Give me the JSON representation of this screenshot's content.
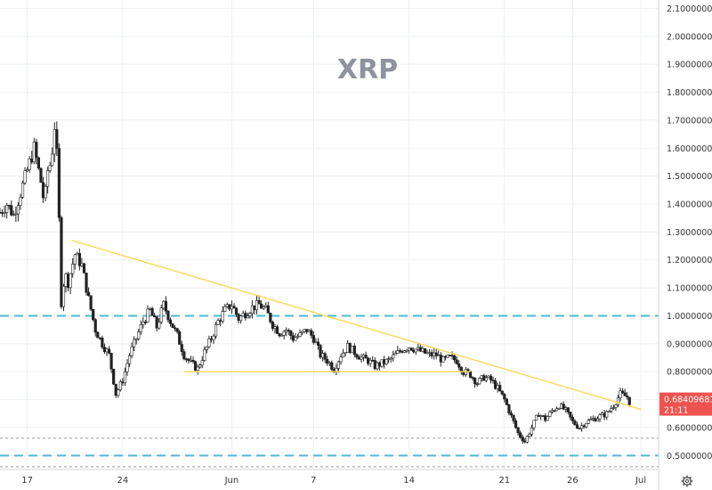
{
  "chart_data": {
    "type": "candlestick",
    "title": "XRP",
    "ylim": [
      0.45,
      2.13
    ],
    "y_ticks": [
      0.5,
      0.6,
      0.7,
      0.8,
      0.9,
      1.0,
      1.1,
      1.2,
      1.3,
      1.4,
      1.5,
      1.6,
      1.7,
      1.8,
      1.9,
      2.0,
      2.1
    ],
    "y_tick_labels": [
      "0.50000000",
      "0.60000000",
      "0.70000000",
      "0.80000000",
      "0.90000000",
      "1.00000000",
      "1.10000000",
      "1.20000000",
      "1.30000000",
      "1.40000000",
      "1.50000000",
      "1.60000000",
      "1.70000000",
      "1.80000000",
      "1.90000000",
      "2.00000000",
      "2.10000000"
    ],
    "x_range": [
      "2021-05-15",
      "2021-07-01"
    ],
    "x_ticks": [
      {
        "date": "2021-05-17",
        "label": "17"
      },
      {
        "date": "2021-05-24",
        "label": "24"
      },
      {
        "date": "2021-06-01",
        "label": "Jun"
      },
      {
        "date": "2021-06-07",
        "label": "7"
      },
      {
        "date": "2021-06-14",
        "label": "14"
      },
      {
        "date": "2021-06-21",
        "label": "21"
      },
      {
        "date": "2021-06-26",
        "label": "26"
      },
      {
        "date": "2021-07-01",
        "label": "Jul"
      }
    ],
    "grid": true,
    "current_price": 0.68409681,
    "current_price_label": "0.68409681",
    "countdown_label": "21:11",
    "series": [
      {
        "kind": "ohlc-path",
        "color_up": "#26a69a",
        "color_down": "#ef5350",
        "points": [
          [
            "2021-05-15 00:00",
            1.37
          ],
          [
            "2021-05-15 12:00",
            1.4
          ],
          [
            "2021-05-16 00:00",
            1.36
          ],
          [
            "2021-05-16 12:00",
            1.44
          ],
          [
            "2021-05-17 00:00",
            1.52
          ],
          [
            "2021-05-17 12:00",
            1.6
          ],
          [
            "2021-05-18 00:00",
            1.48
          ],
          [
            "2021-05-18 06:00",
            1.4
          ],
          [
            "2021-05-18 12:00",
            1.52
          ],
          [
            "2021-05-18 18:00",
            1.55
          ],
          [
            "2021-05-19 00:00",
            1.68
          ],
          [
            "2021-05-19 06:00",
            1.52
          ],
          [
            "2021-05-19 09:00",
            1.25
          ],
          [
            "2021-05-19 12:00",
            1.05
          ],
          [
            "2021-05-19 18:00",
            1.15
          ],
          [
            "2021-05-20 00:00",
            1.12
          ],
          [
            "2021-05-20 12:00",
            1.22
          ],
          [
            "2021-05-21 00:00",
            1.18
          ],
          [
            "2021-05-21 12:00",
            1.06
          ],
          [
            "2021-05-22 00:00",
            0.95
          ],
          [
            "2021-05-22 12:00",
            0.9
          ],
          [
            "2021-05-23 00:00",
            0.86
          ],
          [
            "2021-05-23 12:00",
            0.72
          ],
          [
            "2021-05-24 00:00",
            0.77
          ],
          [
            "2021-05-24 12:00",
            0.86
          ],
          [
            "2021-05-25 00:00",
            0.92
          ],
          [
            "2021-05-25 12:00",
            0.98
          ],
          [
            "2021-05-26 00:00",
            1.02
          ],
          [
            "2021-05-26 12:00",
            0.96
          ],
          [
            "2021-05-27 00:00",
            1.04
          ],
          [
            "2021-05-27 12:00",
            0.98
          ],
          [
            "2021-05-28 00:00",
            0.93
          ],
          [
            "2021-05-28 12:00",
            0.86
          ],
          [
            "2021-05-29 00:00",
            0.83
          ],
          [
            "2021-05-29 12:00",
            0.81
          ],
          [
            "2021-05-30 00:00",
            0.87
          ],
          [
            "2021-05-30 12:00",
            0.92
          ],
          [
            "2021-05-31 00:00",
            0.98
          ],
          [
            "2021-05-31 12:00",
            1.02
          ],
          [
            "2021-06-01 00:00",
            1.04
          ],
          [
            "2021-06-01 12:00",
            0.99
          ],
          [
            "2021-06-02 00:00",
            1.01
          ],
          [
            "2021-06-02 12:00",
            1.03
          ],
          [
            "2021-06-03 00:00",
            1.04
          ],
          [
            "2021-06-03 12:00",
            1.02
          ],
          [
            "2021-06-04 00:00",
            0.97
          ],
          [
            "2021-06-04 12:00",
            0.94
          ],
          [
            "2021-06-05 00:00",
            0.95
          ],
          [
            "2021-06-05 12:00",
            0.92
          ],
          [
            "2021-06-06 00:00",
            0.93
          ],
          [
            "2021-06-06 12:00",
            0.95
          ],
          [
            "2021-06-07 00:00",
            0.92
          ],
          [
            "2021-06-07 12:00",
            0.86
          ],
          [
            "2021-06-08 00:00",
            0.84
          ],
          [
            "2021-06-08 12:00",
            0.81
          ],
          [
            "2021-06-09 00:00",
            0.86
          ],
          [
            "2021-06-09 12:00",
            0.89
          ],
          [
            "2021-06-10 00:00",
            0.87
          ],
          [
            "2021-06-10 12:00",
            0.85
          ],
          [
            "2021-06-11 00:00",
            0.84
          ],
          [
            "2021-06-11 12:00",
            0.82
          ],
          [
            "2021-06-12 00:00",
            0.83
          ],
          [
            "2021-06-12 12:00",
            0.84
          ],
          [
            "2021-06-13 00:00",
            0.86
          ],
          [
            "2021-06-13 12:00",
            0.88
          ],
          [
            "2021-06-14 00:00",
            0.89
          ],
          [
            "2021-06-14 12:00",
            0.88
          ],
          [
            "2021-06-15 00:00",
            0.87
          ],
          [
            "2021-06-15 12:00",
            0.86
          ],
          [
            "2021-06-16 00:00",
            0.86
          ],
          [
            "2021-06-16 12:00",
            0.84
          ],
          [
            "2021-06-17 00:00",
            0.85
          ],
          [
            "2021-06-17 12:00",
            0.84
          ],
          [
            "2021-06-18 00:00",
            0.8
          ],
          [
            "2021-06-18 12:00",
            0.79
          ],
          [
            "2021-06-19 00:00",
            0.76
          ],
          [
            "2021-06-19 12:00",
            0.78
          ],
          [
            "2021-06-20 00:00",
            0.77
          ],
          [
            "2021-06-20 12:00",
            0.74
          ],
          [
            "2021-06-21 00:00",
            0.7
          ],
          [
            "2021-06-21 12:00",
            0.64
          ],
          [
            "2021-06-22 00:00",
            0.58
          ],
          [
            "2021-06-22 12:00",
            0.55
          ],
          [
            "2021-06-23 00:00",
            0.6
          ],
          [
            "2021-06-23 12:00",
            0.65
          ],
          [
            "2021-06-24 00:00",
            0.63
          ],
          [
            "2021-06-24 12:00",
            0.66
          ],
          [
            "2021-06-25 00:00",
            0.68
          ],
          [
            "2021-06-25 12:00",
            0.66
          ],
          [
            "2021-06-26 00:00",
            0.62
          ],
          [
            "2021-06-26 12:00",
            0.6
          ],
          [
            "2021-06-27 00:00",
            0.62
          ],
          [
            "2021-06-27 12:00",
            0.63
          ],
          [
            "2021-06-28 00:00",
            0.64
          ],
          [
            "2021-06-28 12:00",
            0.65
          ],
          [
            "2021-06-29 00:00",
            0.68
          ],
          [
            "2021-06-29 12:00",
            0.72
          ],
          [
            "2021-06-30 00:00",
            0.71
          ],
          [
            "2021-06-30 06:00",
            0.684
          ]
        ]
      }
    ],
    "annotations": {
      "trendlines": [
        {
          "color": "#ffd54f",
          "from": [
            "2021-05-20 06:00",
            1.27
          ],
          "to": [
            "2021-07-01 00:00",
            0.665
          ]
        },
        {
          "color": "#ffd54f",
          "from": [
            "2021-05-28 12:00",
            0.8
          ],
          "to": [
            "2021-06-18 12:00",
            0.8
          ]
        }
      ],
      "horizontal_levels": [
        {
          "value": 1.0,
          "style": "dashed",
          "color": "#4fb8d6"
        },
        {
          "value": 0.5,
          "style": "dashed",
          "color": "#4fb8d6"
        },
        {
          "value": 0.562,
          "style": "dotted",
          "color": "#9e9e9e"
        },
        {
          "value": 0.46,
          "style": "dotted",
          "color": "#9e9e9e"
        }
      ]
    },
    "colors": {
      "price_badge": "#ef5350",
      "grid": "#eceff3",
      "axis_border": "#cccccc"
    },
    "icons": [
      "gear-icon"
    ]
  }
}
